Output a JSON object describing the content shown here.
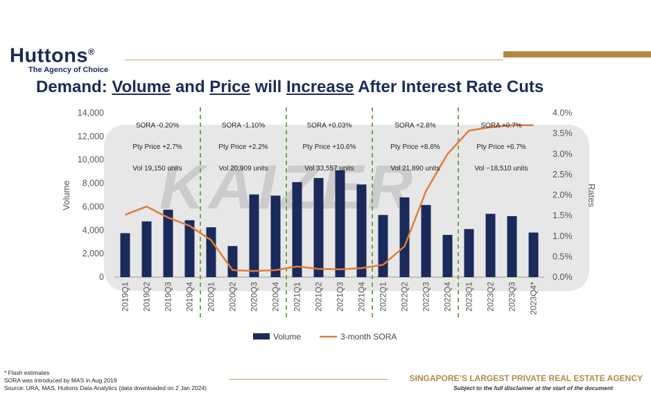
{
  "brand": {
    "name": "Huttons",
    "mark": "®",
    "tagline": "The Agency of Choice"
  },
  "title": {
    "w1": "Demand:",
    "w2": "Volume",
    "w3": "and",
    "w4": "Price",
    "w5": "will",
    "w6": "Increase",
    "w7": "After Interest Rate Cuts"
  },
  "watermark": {
    "text": "KAIZER"
  },
  "chart_data": {
    "type": "bar",
    "categories": [
      "2019Q1",
      "2019Q2",
      "2019Q3",
      "2019Q4",
      "2020Q1",
      "2020Q2",
      "2020Q3",
      "2020Q4",
      "2021Q1",
      "2021Q2",
      "2021Q3",
      "2021Q4",
      "2022Q1",
      "2022Q2",
      "2022Q3",
      "2022Q4",
      "2023Q1",
      "2023Q2",
      "2023Q3",
      "2023Q4*"
    ],
    "series": [
      {
        "name": "Volume",
        "kind": "bar",
        "axis": "left",
        "color": "#1a2a5a",
        "values": [
          3750,
          4750,
          5750,
          4850,
          4250,
          2650,
          7050,
          6950,
          8100,
          8450,
          9100,
          7900,
          5300,
          6800,
          6150,
          3600,
          4100,
          5400,
          5200,
          3800
        ]
      },
      {
        "name": "3-month SORA",
        "kind": "line",
        "axis": "right",
        "color": "#e07b39",
        "values": [
          1.52,
          1.72,
          1.45,
          1.25,
          0.9,
          0.17,
          0.15,
          0.17,
          0.26,
          0.2,
          0.19,
          0.22,
          0.3,
          0.75,
          2.1,
          3.0,
          3.57,
          3.65,
          3.7,
          3.7
        ]
      }
    ],
    "ylabel": "Volume",
    "y2label": "Rates",
    "ylim": [
      0,
      14000
    ],
    "yticks": [
      "0",
      "2,000",
      "4,000",
      "6,000",
      "8,000",
      "10,000",
      "12,000",
      "14,000"
    ],
    "y2lim": [
      0,
      4.0
    ],
    "y2ticks": [
      "0.0%",
      "0.5%",
      "1.0%",
      "1.5%",
      "2.0%",
      "2.5%",
      "3.0%",
      "3.5%",
      "4.0%"
    ],
    "legend_position": "bottom",
    "dividers_after_category": [
      3,
      7,
      11,
      15
    ],
    "period_annotations": [
      {
        "sora": "SORA -0.20%",
        "price": "Pty Price +2.7%",
        "vol": "Vol 19,150 units"
      },
      {
        "sora": "SORA -1.10%",
        "price": "Pty Price +2.2%",
        "vol": "Vol 20,909 units"
      },
      {
        "sora": "SORA +0.03%",
        "price": "Pty Price +10.6%",
        "vol": "Vol 33,557 units"
      },
      {
        "sora": "SORA +2.8%",
        "price": "Pty Price +8.6%",
        "vol": "Vol 21,890 units"
      },
      {
        "sora": "SORA +0.7%",
        "price": "Pty Price +6.7%",
        "vol": "Vol ~18,510 units"
      }
    ]
  },
  "footnotes": {
    "line1": "* Flash estimates",
    "line2": "SORA was introduced by MAS in Aug 2019",
    "line3": "Source: URA, MAS, Huttons Data Analytics (data downloaded on 2 Jan 2024)"
  },
  "footer": {
    "tagline": "SINGAPORE’S LARGEST PRIVATE REAL ESTATE AGENCY",
    "disclaimer": "Subject to the full disclaimer at the start of the document"
  }
}
